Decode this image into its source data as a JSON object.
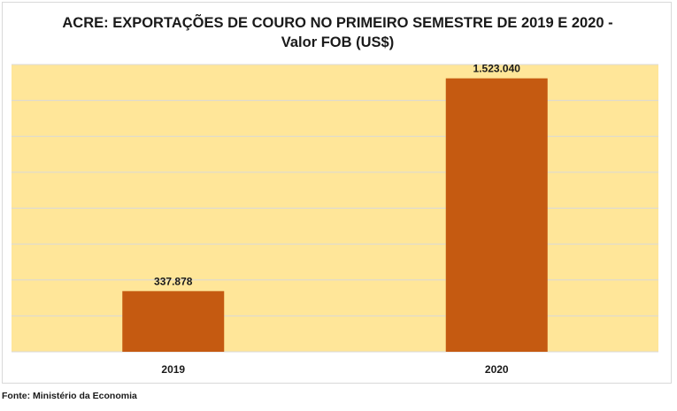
{
  "chart_data": {
    "type": "bar",
    "title_lines": [
      "ACRE: EXPORTAÇÕES DE COURO NO PRIMEIRO SEMESTRE DE 2019 E 2020 -",
      "Valor FOB (US$)"
    ],
    "categories": [
      "2019",
      "2020"
    ],
    "values": [
      337878,
      1523040
    ],
    "value_labels": [
      "337.878",
      "1.523.040"
    ],
    "ylim": [
      0,
      1600000
    ],
    "y_gridline_step": 200000,
    "grid": true,
    "legend": "none",
    "colors": {
      "bar": "#c55a11",
      "plot_background": "#ffe699",
      "gridline": "#d9d9d9"
    }
  },
  "source": "Fonte: Ministério da Economia"
}
